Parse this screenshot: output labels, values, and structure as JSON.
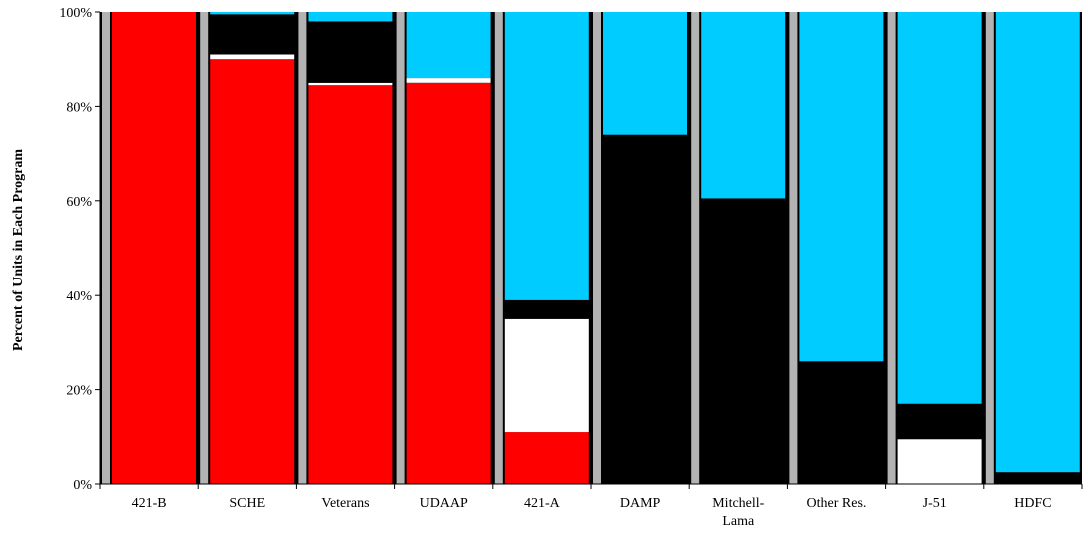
{
  "chart_data": {
    "type": "bar",
    "stacked": true,
    "normalized_percent": true,
    "title": "",
    "xlabel": "",
    "ylabel": "Percent of Units in Each Program",
    "ylim": [
      0,
      100
    ],
    "yticks": [
      "0%",
      "20%",
      "40%",
      "60%",
      "80%",
      "100%"
    ],
    "categories": [
      "421-B",
      "SCHE",
      "Veterans",
      "UDAAP",
      "421-A",
      "DAMP",
      "Mitchell-Lama",
      "Other Res.",
      "J-51",
      "HDFC"
    ],
    "category_labels": [
      [
        "421-B"
      ],
      [
        "SCHE"
      ],
      [
        "Veterans"
      ],
      [
        "UDAAP"
      ],
      [
        "421-A"
      ],
      [
        "DAMP"
      ],
      [
        "Mitchell-",
        "Lama"
      ],
      [
        "Other Res."
      ],
      [
        "J-51"
      ],
      [
        "HDFC"
      ]
    ],
    "series": [
      {
        "color": "#ff0000",
        "values": [
          100,
          90,
          84.5,
          85,
          11,
          0,
          0,
          0,
          0,
          0
        ]
      },
      {
        "color": "#ffffff",
        "values": [
          0,
          1,
          0.5,
          1,
          24,
          0,
          0,
          0,
          9.5,
          0
        ]
      },
      {
        "color": "#000000",
        "values": [
          0,
          8.5,
          13,
          0,
          4,
          74,
          60.5,
          26,
          7.5,
          2.5
        ]
      },
      {
        "color": "#00ccff",
        "values": [
          0,
          0.5,
          2,
          14,
          61,
          26,
          39.5,
          74,
          83,
          97.5
        ]
      }
    ],
    "plot_background": "#000000",
    "gap_color": "#b3b3b3",
    "grid": false,
    "legend": "none"
  }
}
